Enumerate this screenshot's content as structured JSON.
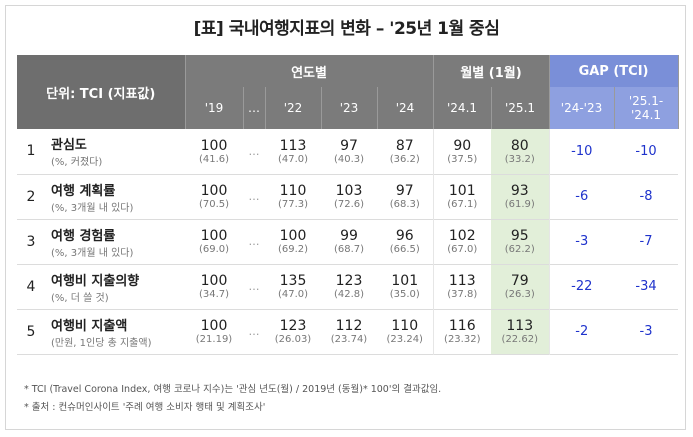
{
  "title": "[표] 국내여행지표의 변화 – '25년 1월 중심",
  "header": {
    "unit_label": "단위: TCI (지표값)",
    "group_yearly": "연도별",
    "group_monthly": "월별 (1월)",
    "group_gap": "GAP (TCI)",
    "cols": [
      "'19",
      "…",
      "'22",
      "'23",
      "'24",
      "'24.1",
      "'25.1",
      "'24-'23",
      "'25.1-'24.1"
    ]
  },
  "rows": [
    {
      "rank": "1",
      "name": "관심도",
      "sub": "(%, 커졌다)",
      "y19": "100",
      "y19p": "(41.6)",
      "y22": "113",
      "y22p": "(47.0)",
      "y23": "97",
      "y23p": "(40.3)",
      "y24": "87",
      "y24p": "(36.2)",
      "m241": "90",
      "m241p": "(37.5)",
      "m251": "80",
      "m251p": "(33.2)",
      "gap1": "-10",
      "gap2": "-10"
    },
    {
      "rank": "2",
      "name": "여행 계획률",
      "sub": "(%, 3개월 내 있다)",
      "y19": "100",
      "y19p": "(70.5)",
      "y22": "110",
      "y22p": "(77.3)",
      "y23": "103",
      "y23p": "(72.6)",
      "y24": "97",
      "y24p": "(68.3)",
      "m241": "101",
      "m241p": "(67.1)",
      "m251": "93",
      "m251p": "(61.9)",
      "gap1": "-6",
      "gap2": "-8"
    },
    {
      "rank": "3",
      "name": "여행 경험률",
      "sub": "(%, 3개월 내 있다)",
      "y19": "100",
      "y19p": "(69.0)",
      "y22": "100",
      "y22p": "(69.2)",
      "y23": "99",
      "y23p": "(68.7)",
      "y24": "96",
      "y24p": "(66.5)",
      "m241": "102",
      "m241p": "(67.0)",
      "m251": "95",
      "m251p": "(62.2)",
      "gap1": "-3",
      "gap2": "-7"
    },
    {
      "rank": "4",
      "name": "여행비 지출의향",
      "sub": "(%, 더 쓸 것)",
      "y19": "100",
      "y19p": "(34.7)",
      "y22": "135",
      "y22p": "(47.0)",
      "y23": "123",
      "y23p": "(42.8)",
      "y24": "101",
      "y24p": "(35.0)",
      "m241": "113",
      "m241p": "(37.8)",
      "m251": "79",
      "m251p": "(26.3)",
      "gap1": "-22",
      "gap2": "-34"
    },
    {
      "rank": "5",
      "name": "여행비 지출액",
      "sub": "(만원, 1인당 총 지출액)",
      "y19": "100",
      "y19p": "(21.19)",
      "y22": "123",
      "y22p": "(26.03)",
      "y23": "112",
      "y23p": "(23.74)",
      "y24": "110",
      "y24p": "(23.24)",
      "m241": "116",
      "m241p": "(23.32)",
      "m251": "113",
      "m251p": "(22.62)",
      "gap1": "-2",
      "gap2": "-3"
    }
  ],
  "notes": [
    "* TCI (Travel Corona Index, 여행 코로나 지수)는 '관심 년도(월) / 2019년 (동월)* 100'의 결과값임.",
    "* 출처 : 컨슈머인사이트 '주례 여행 소비자 행태 및 계획조사'"
  ]
}
